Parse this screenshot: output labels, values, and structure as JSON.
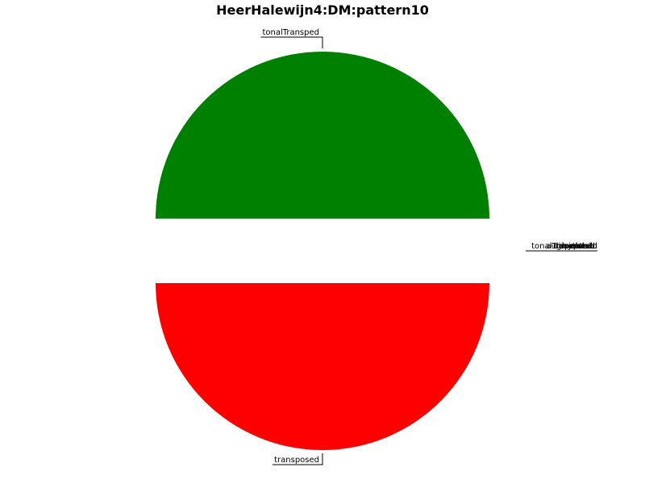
{
  "chart_data": {
    "type": "pie",
    "title": "HeerHalewijn4:DM:pattern10",
    "slices": [
      {
        "label": "tonalTransped",
        "value": 50,
        "color": "#008000",
        "explode": 0.0
      },
      {
        "label": "transposed",
        "value": 50,
        "color": "#ff0000",
        "explode": 0.0
      },
      {
        "label": "exact",
        "value": 0,
        "color": "#1f77b4",
        "explode": 0.2
      },
      {
        "label": "tonalTransposed",
        "value": 0,
        "color": "#ff7f0e",
        "explode": 0.2
      },
      {
        "label": "rhythmic",
        "value": 0,
        "color": "#2ca02c",
        "explode": 0.2
      },
      {
        "label": "augmented",
        "value": 0,
        "color": "#d62728",
        "explode": 0.2
      },
      {
        "label": "diminished",
        "value": 0,
        "color": "#9467bd",
        "explode": 0.2
      },
      {
        "label": "inverted",
        "value": 0,
        "color": "#8c564b",
        "explode": 0.2
      },
      {
        "label": "repeated",
        "value": 0,
        "color": "#e377c2",
        "explode": 0.2
      }
    ],
    "units": "percent",
    "legend": "none"
  }
}
